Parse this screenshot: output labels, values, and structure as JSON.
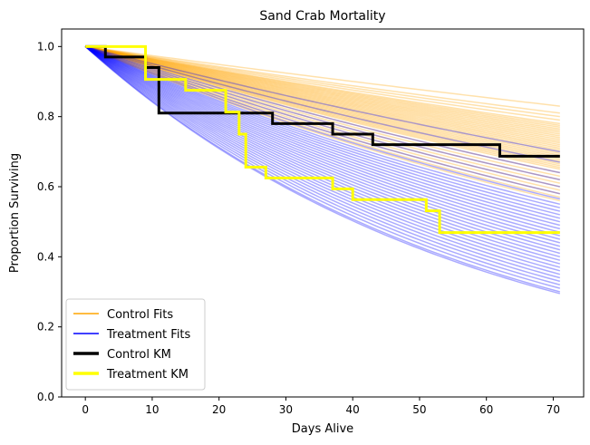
{
  "chart_data": {
    "type": "line",
    "title": "Sand Crab Mortality",
    "xlabel": "Days Alive",
    "ylabel": "Proportion Surviving",
    "xlim": [
      -3.55,
      74.55
    ],
    "ylim": [
      0.0,
      1.05
    ],
    "xticks": [
      0,
      10,
      20,
      30,
      40,
      50,
      60,
      70
    ],
    "xtick_labels": [
      "0",
      "10",
      "20",
      "30",
      "40",
      "50",
      "60",
      "70"
    ],
    "yticks": [
      0.0,
      0.2,
      0.4,
      0.6,
      0.8,
      1.0
    ],
    "ytick_labels": [
      "0.0",
      "0.2",
      "0.4",
      "0.6",
      "0.8",
      "1.0"
    ],
    "grid": false,
    "legend_position": "lower-left",
    "x_max": 71,
    "fit_curves": [
      {
        "group": "control",
        "color": "#ffa500",
        "end_values": [
          0.83,
          0.81,
          0.8,
          0.79,
          0.78,
          0.775,
          0.77,
          0.765,
          0.76,
          0.755,
          0.75,
          0.745,
          0.74,
          0.735,
          0.73,
          0.725,
          0.72,
          0.715,
          0.71,
          0.705,
          0.7,
          0.695,
          0.69,
          0.685,
          0.68,
          0.675,
          0.67,
          0.665,
          0.66,
          0.655,
          0.65,
          0.64,
          0.63,
          0.62,
          0.61,
          0.6,
          0.59,
          0.58,
          0.57,
          0.56
        ]
      },
      {
        "group": "treatment",
        "color": "#0000ff",
        "end_values": [
          0.7,
          0.67,
          0.64,
          0.62,
          0.6,
          0.58,
          0.565,
          0.55,
          0.54,
          0.53,
          0.52,
          0.51,
          0.5,
          0.49,
          0.48,
          0.47,
          0.46,
          0.45,
          0.44,
          0.43,
          0.42,
          0.41,
          0.4,
          0.39,
          0.38,
          0.37,
          0.36,
          0.35,
          0.34,
          0.33,
          0.32,
          0.31,
          0.3,
          0.295
        ]
      }
    ],
    "series": [
      {
        "name": "Control KM",
        "color": "#000000",
        "step_x": [
          0,
          3,
          3,
          9,
          9,
          11,
          11,
          28,
          28,
          37,
          37,
          43,
          43,
          62,
          62,
          71
        ],
        "step_y": [
          1.0,
          1.0,
          0.97,
          0.97,
          0.94,
          0.94,
          0.81,
          0.81,
          0.78,
          0.78,
          0.75,
          0.75,
          0.72,
          0.72,
          0.687,
          0.687
        ]
      },
      {
        "name": "Treatment KM",
        "color": "#ffff00",
        "step_x": [
          0,
          9,
          9,
          15,
          15,
          21,
          21,
          23,
          23,
          24,
          24,
          27,
          27,
          37,
          37,
          40,
          40,
          51,
          51,
          53,
          53,
          71
        ],
        "step_y": [
          1.0,
          1.0,
          0.906,
          0.906,
          0.875,
          0.875,
          0.813,
          0.813,
          0.75,
          0.75,
          0.656,
          0.656,
          0.625,
          0.625,
          0.594,
          0.594,
          0.563,
          0.563,
          0.531,
          0.531,
          0.469,
          0.469
        ]
      }
    ],
    "legend": [
      {
        "label": "Control Fits",
        "color": "#ffa500",
        "width": "thin"
      },
      {
        "label": "Treatment Fits",
        "color": "#0000ff",
        "width": "thin"
      },
      {
        "label": "Control KM",
        "color": "#000000",
        "width": "thick"
      },
      {
        "label": "Treatment KM",
        "color": "#ffff00",
        "width": "thick"
      }
    ]
  }
}
